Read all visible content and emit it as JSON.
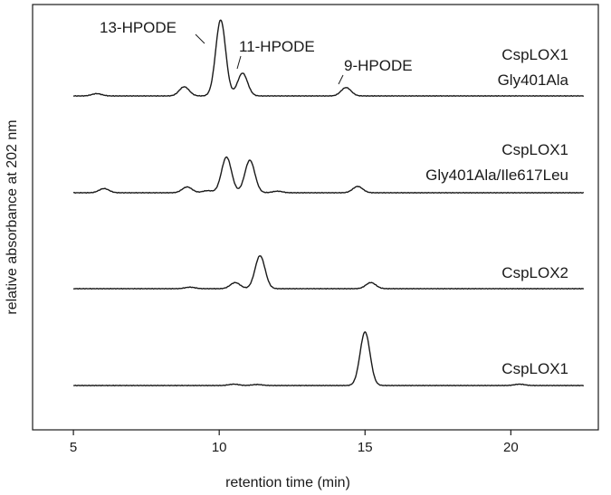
{
  "chart_data": {
    "type": "line",
    "xlabel": "retention time (min)",
    "ylabel": "relative absorbance at 202 nm",
    "xlim": [
      3.6,
      23.0
    ],
    "x_ticks": [
      5,
      10,
      15,
      20
    ],
    "x_tick_labels": [
      "5",
      "10",
      "15",
      "20"
    ],
    "grid": false,
    "y_scale": "relative (stacked, offset traces)",
    "x_range_traces": [
      5.0,
      22.5
    ],
    "series": [
      {
        "label_lines": [
          "CspLOX1",
          "Gly401Ala"
        ],
        "peaks": [
          {
            "rt": 5.8,
            "height": 0.03
          },
          {
            "rt": 8.8,
            "height": 0.12
          },
          {
            "rt": 10.05,
            "height": 1.0
          },
          {
            "rt": 10.8,
            "height": 0.3
          },
          {
            "rt": 14.35,
            "height": 0.11
          }
        ]
      },
      {
        "label_lines": [
          "CspLOX1",
          "Gly401Ala/Ile617Leu"
        ],
        "peaks": [
          {
            "rt": 6.05,
            "height": 0.08
          },
          {
            "rt": 8.9,
            "height": 0.11
          },
          {
            "rt": 9.6,
            "height": 0.04
          },
          {
            "rt": 10.25,
            "height": 0.68
          },
          {
            "rt": 11.05,
            "height": 0.62
          },
          {
            "rt": 12.0,
            "height": 0.03
          },
          {
            "rt": 14.75,
            "height": 0.12
          }
        ]
      },
      {
        "label_lines": [
          "CspLOX2"
        ],
        "peaks": [
          {
            "rt": 9.0,
            "height": 0.03
          },
          {
            "rt": 10.55,
            "height": 0.12
          },
          {
            "rt": 11.4,
            "height": 0.65
          },
          {
            "rt": 15.2,
            "height": 0.12
          }
        ]
      },
      {
        "label_lines": [
          "CspLOX1"
        ],
        "peaks": [
          {
            "rt": 10.5,
            "height": 0.02
          },
          {
            "rt": 11.3,
            "height": 0.015
          },
          {
            "rt": 15.0,
            "height": 0.8
          },
          {
            "rt": 20.3,
            "height": 0.02
          }
        ]
      }
    ],
    "annotations": [
      {
        "text": "13-HPODE",
        "rt": 10.05,
        "series": 0
      },
      {
        "text": "11-HPODE",
        "rt": 10.8,
        "series": 0
      },
      {
        "text": "9-HPODE",
        "rt": 14.35,
        "series": 0
      }
    ]
  }
}
